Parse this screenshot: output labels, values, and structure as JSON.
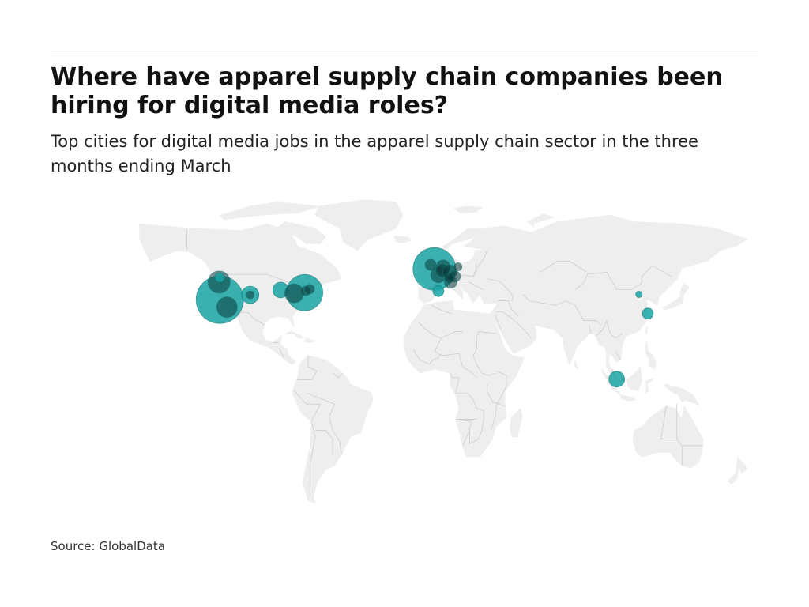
{
  "header": {
    "title": "Where have apparel supply chain companies been hiring for digital media roles?",
    "subtitle": "Top cities for digital media jobs in the apparel supply chain sector in the three months ending March"
  },
  "footer": {
    "source": "Source: GlobalData"
  },
  "colors": {
    "land": "#eeeeee",
    "border": "#c8c8c8",
    "bubble": "#1aa3a3",
    "bubble_stroke": "#0e6f6f",
    "dark": "#0b3a3a"
  },
  "map": {
    "projection": "equirectangular",
    "bubbles": [
      {
        "lat": 37.5,
        "lon": -122.3,
        "size": 30,
        "tone": "bubble"
      },
      {
        "lat": 34.1,
        "lon": -118.2,
        "size": 13,
        "tone": "dark"
      },
      {
        "lat": 45.5,
        "lon": -122.7,
        "size": 14,
        "tone": "dark"
      },
      {
        "lat": 47.6,
        "lon": -122.3,
        "size": 6,
        "tone": "bubble"
      },
      {
        "lat": 39.7,
        "lon": -105.0,
        "size": 11,
        "tone": "bubble"
      },
      {
        "lat": 39.7,
        "lon": -105.0,
        "size": 5,
        "tone": "dark"
      },
      {
        "lat": 41.9,
        "lon": -87.6,
        "size": 10,
        "tone": "bubble"
      },
      {
        "lat": 40.7,
        "lon": -74.0,
        "size": 23,
        "tone": "bubble"
      },
      {
        "lat": 40.4,
        "lon": -79.9,
        "size": 12,
        "tone": "dark"
      },
      {
        "lat": 42.3,
        "lon": -71.1,
        "size": 6,
        "tone": "dark"
      },
      {
        "lat": 41.5,
        "lon": -73.3,
        "size": 6,
        "tone": "dark"
      },
      {
        "lat": 51.5,
        "lon": -0.1,
        "size": 27,
        "tone": "bubble"
      },
      {
        "lat": 53.4,
        "lon": -2.2,
        "size": 7,
        "tone": "dark"
      },
      {
        "lat": 48.8,
        "lon": 2.3,
        "size": 10,
        "tone": "dark"
      },
      {
        "lat": 52.4,
        "lon": 4.9,
        "size": 9,
        "tone": "dark"
      },
      {
        "lat": 50.8,
        "lon": 4.4,
        "size": 8,
        "tone": "dark"
      },
      {
        "lat": 50.1,
        "lon": 8.7,
        "size": 9,
        "tone": "dark"
      },
      {
        "lat": 48.1,
        "lon": 11.6,
        "size": 7,
        "tone": "dark"
      },
      {
        "lat": 52.5,
        "lon": 13.4,
        "size": 5,
        "tone": "dark"
      },
      {
        "lat": 45.5,
        "lon": 9.2,
        "size": 8,
        "tone": "dark"
      },
      {
        "lat": 41.4,
        "lon": 2.2,
        "size": 7,
        "tone": "bubble"
      },
      {
        "lat": 47.4,
        "lon": 8.5,
        "size": 6,
        "tone": "dark"
      },
      {
        "lat": 39.9,
        "lon": 116.4,
        "size": 4,
        "tone": "bubble"
      },
      {
        "lat": 31.2,
        "lon": 121.5,
        "size": 7,
        "tone": "bubble"
      },
      {
        "lat": 1.3,
        "lon": 103.8,
        "size": 10,
        "tone": "bubble"
      }
    ]
  }
}
